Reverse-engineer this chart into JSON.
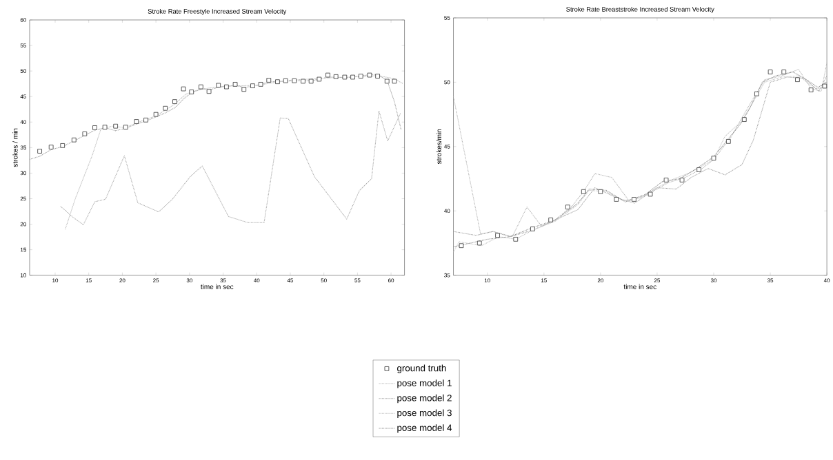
{
  "chart_data": [
    {
      "type": "line",
      "title": "Stroke Rate Freestyle Increased Stream Velocity",
      "xlabel": "time in sec",
      "ylabel": "strokes / min",
      "xlim": [
        6.2,
        62
      ],
      "ylim": [
        10,
        60
      ],
      "xticks": [
        10,
        15,
        20,
        25,
        30,
        35,
        40,
        45,
        50,
        55,
        60
      ],
      "yticks": [
        10,
        15,
        20,
        25,
        30,
        35,
        40,
        45,
        50,
        55,
        60
      ],
      "legend": false,
      "series": [
        {
          "type": "scatter",
          "marker": "square",
          "color": "#333333",
          "x": [
            7.7,
            9.4,
            11.1,
            12.8,
            14.4,
            15.9,
            17.4,
            19.0,
            20.5,
            22.1,
            23.5,
            25.0,
            26.4,
            27.8,
            29.1,
            30.3,
            31.7,
            32.9,
            34.3,
            35.5,
            36.8,
            38.1,
            39.4,
            40.6,
            41.8,
            43.1,
            44.3,
            45.6,
            46.9,
            48.1,
            49.3,
            50.6,
            51.8,
            53.1,
            54.3,
            55.5,
            56.8,
            58.0,
            59.4,
            60.5
          ],
          "values": [
            34.3,
            35.1,
            35.4,
            36.5,
            37.7,
            38.9,
            39.0,
            39.2,
            39.0,
            40.1,
            40.4,
            41.5,
            42.7,
            44.0,
            46.5,
            45.9,
            46.9,
            46.0,
            47.2,
            46.9,
            47.4,
            46.4,
            47.1,
            47.4,
            48.2,
            47.9,
            48.1,
            48.1,
            48.0,
            48.0,
            48.4,
            49.2,
            48.9,
            48.8,
            48.8,
            49.0,
            49.2,
            49.0,
            48.0,
            48.0
          ]
        },
        {
          "type": "line",
          "line_style": "dotted",
          "color": "#9a9a9a",
          "x": [
            6.2,
            7.7,
            9.4,
            11.1,
            12.8,
            14.4,
            15.9,
            17.4,
            19.0,
            20.5,
            22.1,
            23.5,
            25.0,
            26.4,
            27.8,
            29.1,
            30.3,
            31.7,
            32.9,
            34.3,
            35.5,
            36.8,
            38.1,
            39.4,
            40.6,
            41.8,
            43.1,
            44.3,
            45.6,
            46.9,
            48.1,
            49.3,
            50.6,
            51.8,
            53.1,
            54.3,
            55.5,
            56.8,
            58.0,
            59.4,
            60.5,
            61.5
          ],
          "values": [
            32.7,
            33.3,
            34.6,
            35.2,
            36.3,
            37.4,
            38.4,
            38.9,
            38.3,
            38.8,
            39.6,
            40.2,
            41.0,
            41.8,
            42.8,
            44.5,
            45.8,
            46.5,
            46.3,
            46.8,
            47.0,
            47.2,
            46.8,
            47.0,
            47.4,
            47.8,
            48.0,
            48.0,
            48.1,
            48.1,
            48.1,
            48.4,
            48.8,
            48.8,
            48.7,
            48.8,
            49.0,
            49.3,
            49.3,
            48.2,
            44.0,
            38.5
          ]
        },
        {
          "type": "line",
          "line_style": "dotted",
          "color": "#b4b4b4",
          "x": [
            11.5,
            13.0,
            15.5,
            16.8,
            18.5,
            20.5,
            22.0,
            25.0,
            27.8,
            29.5,
            32.0,
            35.0,
            40.0,
            45.0,
            50.0,
            55.0,
            58.0,
            60.5,
            61.8
          ],
          "values": [
            19.0,
            25.0,
            33.4,
            38.6,
            39.2,
            38.9,
            39.8,
            41.2,
            43.5,
            45.5,
            46.5,
            47.0,
            47.2,
            48.2,
            48.6,
            48.9,
            49.1,
            48.5,
            47.5
          ]
        },
        {
          "type": "line",
          "line_style": "dotted",
          "color": "#a8a8a8",
          "x": [
            10.8,
            12.8,
            14.2,
            15.9,
            17.5,
            20.3,
            22.3,
            25.4,
            27.4,
            30.1,
            31.9,
            35.8,
            38.7,
            41.1,
            43.5,
            44.7,
            48.6,
            53.4,
            55.3,
            57.1,
            58.2,
            59.5,
            61.4
          ],
          "values": [
            23.5,
            21.2,
            19.9,
            24.4,
            24.9,
            33.4,
            24.2,
            22.4,
            24.8,
            29.3,
            31.4,
            21.5,
            20.3,
            20.3,
            40.8,
            40.7,
            29.3,
            21.0,
            26.6,
            28.9,
            42.2,
            36.3,
            41.7
          ]
        }
      ]
    },
    {
      "type": "line",
      "title": "Stroke Rate Breaststroke Increased Stream Velocity",
      "xlabel": "time in sec",
      "ylabel": "strokes/min",
      "xlim": [
        7,
        40
      ],
      "ylim": [
        35,
        55
      ],
      "xticks": [
        10,
        15,
        20,
        25,
        30,
        35,
        40
      ],
      "yticks": [
        35,
        40,
        45,
        50,
        55
      ],
      "legend": "bottom",
      "series": [
        {
          "type": "scatter",
          "name": "ground truth",
          "marker": "square",
          "color": "#333333",
          "x": [
            7.7,
            9.3,
            10.9,
            12.5,
            14.0,
            15.6,
            17.1,
            18.5,
            20.0,
            21.4,
            22.96,
            24.4,
            25.8,
            27.2,
            28.7,
            30.0,
            31.3,
            32.7,
            33.8,
            35.0,
            36.2,
            37.4,
            38.6,
            39.8
          ],
          "values": [
            37.3,
            37.5,
            38.1,
            37.8,
            38.6,
            39.3,
            40.3,
            41.5,
            41.5,
            40.9,
            40.9,
            41.3,
            42.4,
            42.4,
            43.2,
            44.1,
            45.4,
            47.1,
            49.1,
            50.8,
            50.8,
            50.2,
            49.4,
            49.7
          ]
        },
        {
          "type": "line",
          "name": "pose model 1",
          "line_style": "dotted",
          "color": "#b4b4b4",
          "x": [
            7.0,
            9.4,
            10.5,
            12.2,
            13.5,
            14.8,
            16.0,
            17.5,
            18.5,
            19.5,
            21.0,
            22.5,
            24.0,
            26.0,
            27.5,
            29.0,
            30.0,
            31.5,
            33.0,
            34.5,
            36.0,
            37.5,
            38.6,
            39.5,
            40.0
          ],
          "values": [
            48.9,
            38.2,
            38.4,
            38.0,
            40.3,
            38.8,
            39.3,
            40.4,
            41.5,
            42.9,
            42.6,
            40.8,
            41.2,
            42.2,
            42.6,
            43.3,
            44.0,
            45.7,
            48.0,
            50.2,
            50.5,
            51.0,
            49.5,
            49.3,
            51.5
          ]
        },
        {
          "type": "line",
          "name": "pose model 2",
          "line_style": "dotted",
          "color": "#a0a0a0",
          "x": [
            7.0,
            9.0,
            10.5,
            12.0,
            14.0,
            16.0,
            18.0,
            19.5,
            21.5,
            23.0,
            25.0,
            26.7,
            28.0,
            29.5,
            31.0,
            32.5,
            33.5,
            35.0,
            36.5,
            38.0,
            39.3,
            40.0
          ],
          "values": [
            38.4,
            38.1,
            38.4,
            38.0,
            38.5,
            39.3,
            40.1,
            41.8,
            41.0,
            40.6,
            41.8,
            41.7,
            42.6,
            43.3,
            42.8,
            43.6,
            45.5,
            50.0,
            50.4,
            50.3,
            49.3,
            50.5
          ]
        },
        {
          "type": "line",
          "name": "pose model 3",
          "line_style": "dotted",
          "color": "#c0c0c0",
          "x": [
            7.0,
            7.5,
            9.5,
            11.0,
            12.5,
            14.0,
            16.0,
            18.0,
            19.0,
            20.5,
            22.0,
            23.5,
            25.0,
            26.5,
            28.0,
            30.0,
            31.0,
            32.5,
            33.5,
            34.5,
            36.0,
            37.5,
            39.0,
            40.0
          ],
          "values": [
            36.8,
            37.6,
            37.3,
            38.0,
            37.8,
            38.5,
            39.2,
            40.5,
            41.6,
            41.5,
            40.8,
            41.0,
            41.8,
            42.5,
            43.0,
            44.0,
            45.8,
            47.0,
            48.5,
            50.0,
            50.4,
            50.5,
            49.5,
            49.6
          ]
        },
        {
          "type": "line",
          "name": "pose model 4",
          "line_style": "dotted",
          "color": "#8c8c8c",
          "x": [
            7.0,
            8.5,
            10.0,
            12.0,
            14.0,
            16.0,
            18.0,
            19.0,
            20.5,
            22.2,
            24.0,
            25.5,
            27.0,
            28.5,
            30.0,
            31.3,
            32.4,
            33.2,
            34.3,
            35.5,
            37.0,
            38.2,
            39.2,
            40.0
          ],
          "values": [
            37.2,
            37.5,
            37.8,
            38.0,
            38.7,
            39.3,
            40.6,
            41.7,
            41.6,
            40.7,
            41.3,
            42.3,
            42.5,
            43.3,
            44.2,
            45.6,
            46.8,
            48.0,
            50.0,
            50.5,
            50.8,
            50.2,
            49.6,
            50.0
          ]
        }
      ]
    }
  ]
}
